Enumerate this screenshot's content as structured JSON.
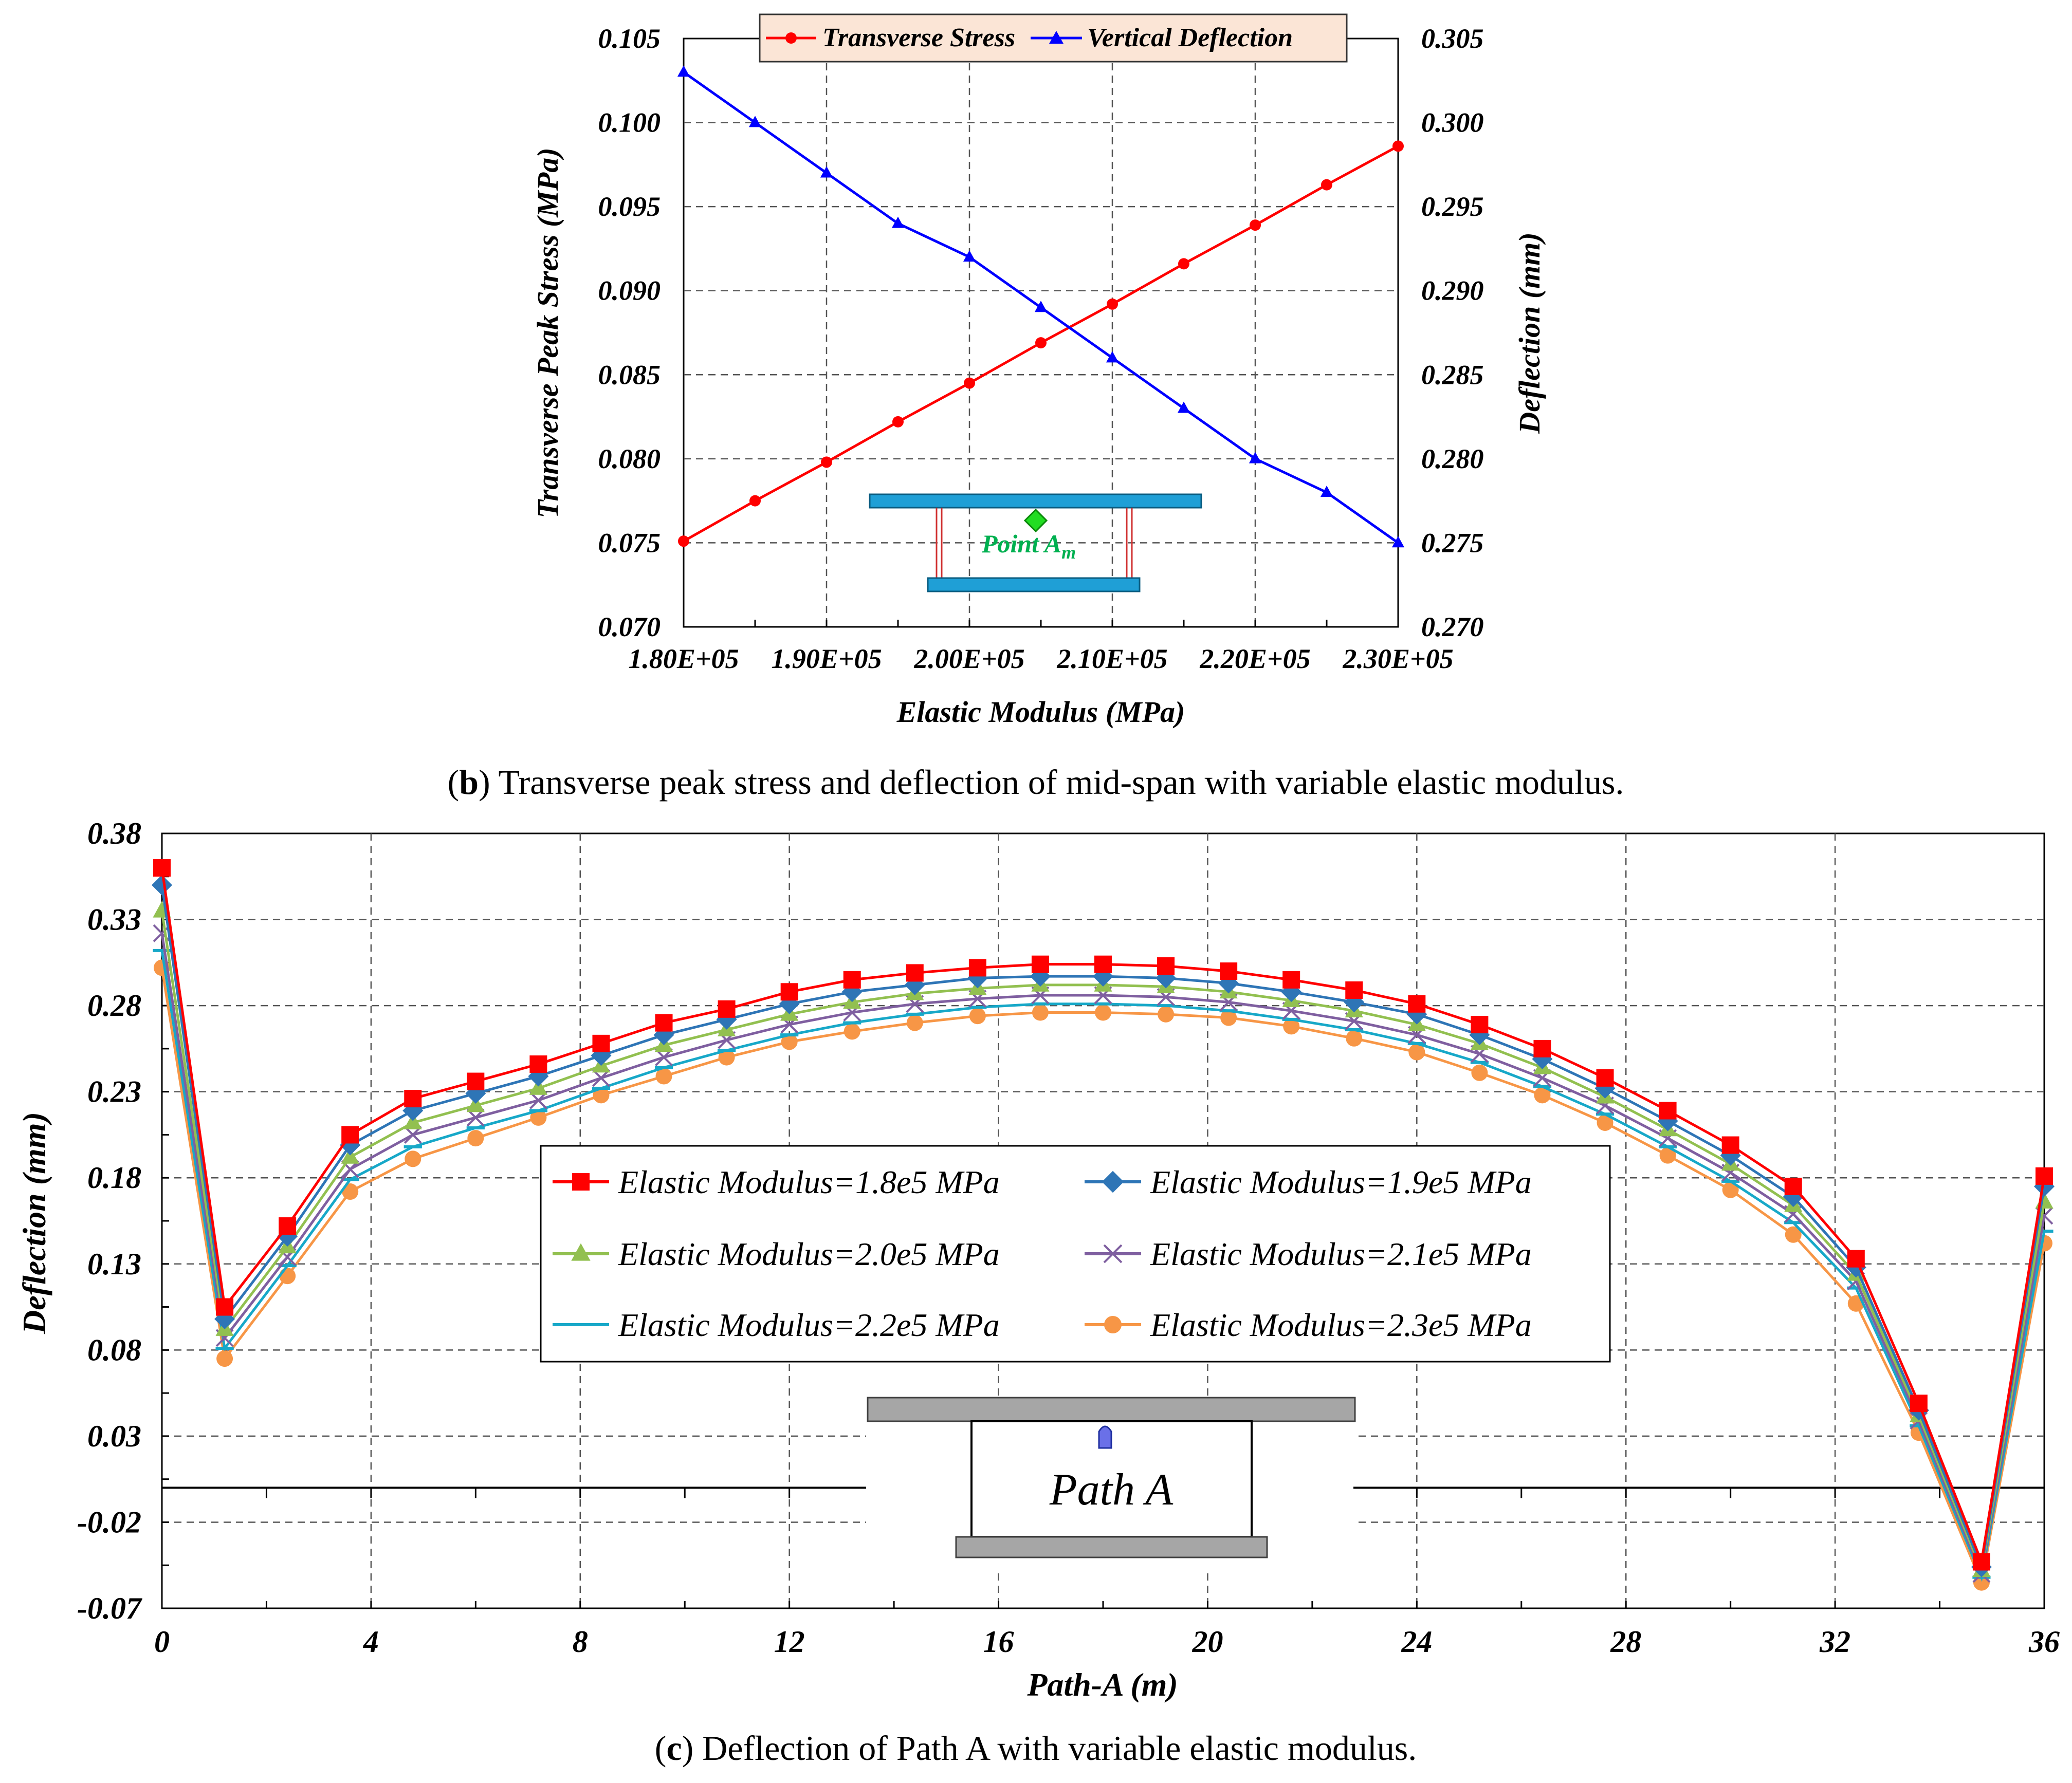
{
  "chart_data": [
    {
      "type": "line",
      "panel": "b",
      "caption_letter": "b",
      "caption_rest": ") Transverse peak stress and deflection of mid-span with variable elastic modulus.",
      "xlabel": "Elastic Modulus (MPa)",
      "ylabel_left": "Transverse Peak Stress (MPa)",
      "ylabel_right": "Deflection (mm)",
      "xlim": [
        180000,
        230000
      ],
      "ylim_left": [
        0.07,
        0.105
      ],
      "ylim_right": [
        0.27,
        0.305
      ],
      "x_ticks": [
        180000,
        190000,
        200000,
        210000,
        220000,
        230000
      ],
      "x_tick_labels": [
        "1.80E+05",
        "1.90E+05",
        "2.00E+05",
        "2.10E+05",
        "2.20E+05",
        "2.30E+05"
      ],
      "y_left_ticks": [
        "0.070",
        "0.075",
        "0.080",
        "0.085",
        "0.090",
        "0.095",
        "0.100",
        "0.105"
      ],
      "y_right_ticks": [
        "0.270",
        "0.275",
        "0.280",
        "0.285",
        "0.290",
        "0.295",
        "0.300",
        "0.305"
      ],
      "x": [
        180000,
        185000,
        190000,
        195000,
        200000,
        205000,
        210000,
        215000,
        220000,
        225000,
        230000
      ],
      "series": [
        {
          "name": "Transverse Stress",
          "axis": "left",
          "color": "#ff0000",
          "marker": "circle",
          "values": [
            0.0751,
            0.0775,
            0.0798,
            0.0822,
            0.0845,
            0.0869,
            0.0892,
            0.0916,
            0.0939,
            0.0963,
            0.0986
          ]
        },
        {
          "name": "Vertical Deflection",
          "axis": "right",
          "color": "#0000ff",
          "marker": "triangle",
          "values": [
            0.303,
            0.3,
            0.297,
            0.294,
            0.292,
            0.289,
            0.286,
            0.283,
            0.28,
            0.278,
            0.275
          ]
        }
      ],
      "inset_label_main": "Point A",
      "inset_label_sub": "m"
    },
    {
      "type": "line",
      "panel": "c",
      "caption_letter": "c",
      "caption_rest": ") Deflection of Path A with variable elastic modulus.",
      "xlabel": "Path-A (m)",
      "ylabel": "Deflection (mm)",
      "xlim": [
        0,
        36
      ],
      "ylim": [
        -0.07,
        0.38
      ],
      "x_ticks": [
        "0",
        "4",
        "8",
        "12",
        "16",
        "20",
        "24",
        "28",
        "32",
        "36"
      ],
      "y_ticks": [
        "-0.07",
        "-0.02",
        "0.03",
        "0.08",
        "0.13",
        "0.18",
        "0.23",
        "0.28",
        "0.33",
        "0.38"
      ],
      "x": [
        0,
        1.2,
        2.4,
        3.6,
        4.8,
        6.0,
        7.2,
        8.4,
        9.6,
        10.8,
        12.0,
        13.2,
        14.4,
        15.6,
        16.8,
        18.0,
        19.2,
        20.4,
        21.6,
        22.8,
        24.0,
        25.2,
        26.4,
        27.6,
        28.8,
        30.0,
        31.2,
        32.4,
        33.6,
        34.8,
        36.0
      ],
      "series": [
        {
          "name": "Elastic Modulus=1.8e5 MPa",
          "color": "#ff0000",
          "marker": "square",
          "line": "#ff0000",
          "values": [
            0.36,
            0.105,
            0.152,
            0.205,
            0.226,
            0.236,
            0.246,
            0.258,
            0.27,
            0.278,
            0.288,
            0.295,
            0.299,
            0.302,
            0.304,
            0.304,
            0.303,
            0.3,
            0.295,
            0.289,
            0.281,
            0.269,
            0.255,
            0.238,
            0.219,
            0.199,
            0.175,
            0.133,
            0.049,
            -0.043,
            0.181
          ]
        },
        {
          "name": "Elastic Modulus=1.9e5 MPa",
          "color": "#2e75b6",
          "marker": "diamond",
          "line": "#2e75b6",
          "values": [
            0.35,
            0.098,
            0.146,
            0.199,
            0.219,
            0.229,
            0.239,
            0.251,
            0.263,
            0.272,
            0.281,
            0.288,
            0.292,
            0.296,
            0.297,
            0.297,
            0.296,
            0.293,
            0.288,
            0.282,
            0.275,
            0.263,
            0.249,
            0.232,
            0.213,
            0.193,
            0.169,
            0.128,
            0.045,
            -0.046,
            0.175
          ]
        },
        {
          "name": "Elastic Modulus=2.0e5 MPa",
          "color": "#92c050",
          "marker": "triangle",
          "line": "#92c050",
          "values": [
            0.335,
            0.092,
            0.14,
            0.192,
            0.212,
            0.222,
            0.232,
            0.245,
            0.257,
            0.266,
            0.275,
            0.282,
            0.287,
            0.29,
            0.292,
            0.292,
            0.291,
            0.288,
            0.283,
            0.277,
            0.269,
            0.258,
            0.244,
            0.227,
            0.208,
            0.188,
            0.164,
            0.124,
            0.042,
            -0.048,
            0.166
          ]
        },
        {
          "name": "Elastic Modulus=2.1e5 MPa",
          "color": "#7f5fa0",
          "marker": "x",
          "line": "#7f5fa0",
          "values": [
            0.322,
            0.087,
            0.134,
            0.185,
            0.205,
            0.215,
            0.225,
            0.238,
            0.25,
            0.26,
            0.269,
            0.276,
            0.281,
            0.284,
            0.286,
            0.286,
            0.285,
            0.282,
            0.277,
            0.271,
            0.263,
            0.252,
            0.238,
            0.222,
            0.203,
            0.183,
            0.159,
            0.12,
            0.039,
            -0.05,
            0.158
          ]
        },
        {
          "name": "Elastic Modulus=2.2e5 MPa",
          "color": "#17a8c8",
          "marker": "dash",
          "line": "#17a8c8",
          "values": [
            0.312,
            0.081,
            0.129,
            0.179,
            0.198,
            0.209,
            0.219,
            0.232,
            0.244,
            0.254,
            0.263,
            0.27,
            0.275,
            0.279,
            0.281,
            0.281,
            0.28,
            0.277,
            0.272,
            0.266,
            0.258,
            0.247,
            0.233,
            0.217,
            0.198,
            0.178,
            0.154,
            0.116,
            0.036,
            -0.052,
            0.149
          ]
        },
        {
          "name": "Elastic Modulus=2.3e5 MPa",
          "color": "#f79646",
          "marker": "circle",
          "line": "#f79646",
          "values": [
            0.302,
            0.075,
            0.123,
            0.172,
            0.191,
            0.203,
            0.215,
            0.228,
            0.239,
            0.25,
            0.259,
            0.265,
            0.27,
            0.274,
            0.276,
            0.276,
            0.275,
            0.273,
            0.268,
            0.261,
            0.253,
            0.241,
            0.228,
            0.212,
            0.193,
            0.173,
            0.147,
            0.107,
            0.032,
            -0.055,
            0.142
          ]
        }
      ],
      "inset_label": "Path A"
    }
  ]
}
